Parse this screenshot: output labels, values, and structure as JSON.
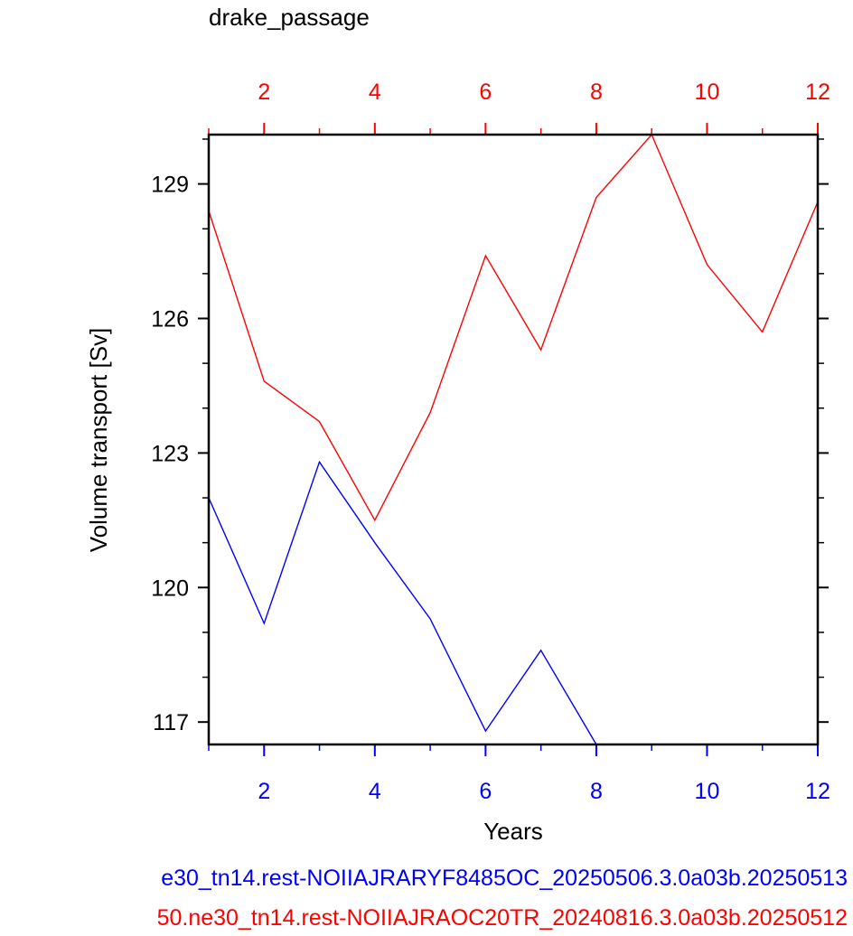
{
  "chart_data": {
    "type": "line",
    "title": "drake_passage",
    "xlabel": "Years",
    "ylabel": "Volume transport [Sv]",
    "xlim": [
      1,
      12
    ],
    "ylim": [
      116.5,
      130.1
    ],
    "bottom_axis": {
      "color": "#0000ff",
      "ticks": [
        2,
        4,
        6,
        8,
        10,
        12
      ],
      "tick_labels": [
        "2",
        "4",
        "6",
        "8",
        "10",
        "12"
      ]
    },
    "top_axis": {
      "color": "#ff0000",
      "ticks": [
        2,
        4,
        6,
        8,
        10,
        12
      ],
      "tick_labels": [
        "2",
        "4",
        "6",
        "8",
        "10",
        "12"
      ]
    },
    "y_ticks": [
      117,
      120,
      123,
      126,
      129
    ],
    "y_tick_labels": [
      "117",
      "120",
      "123",
      "126",
      "129"
    ],
    "grid": false,
    "series": [
      {
        "color": "#0000ff",
        "axis": "bottom",
        "x": [
          1,
          2,
          3,
          4,
          5,
          6,
          7,
          8
        ],
        "values": [
          122.0,
          119.2,
          122.8,
          121.0,
          119.3,
          116.8,
          118.6,
          116.5
        ]
      },
      {
        "color": "#ff0000",
        "axis": "top",
        "x": [
          1,
          2,
          3,
          4,
          5,
          6,
          7,
          8,
          9,
          10,
          11,
          12
        ],
        "values": [
          128.4,
          124.6,
          123.7,
          121.5,
          123.9,
          127.4,
          125.3,
          128.7,
          130.1,
          127.2,
          125.7,
          128.6
        ]
      }
    ],
    "legend_lines": [
      {
        "text": "e30_tn14.rest-NOIIAJRARYF8485OC_20250506.3.0a03b.20250513",
        "color": "#0000ff"
      },
      {
        "text": "50.ne30_tn14.rest-NOIIAJRAOC20TR_20240816.3.0a03b.20250512",
        "color": "#ff0000"
      }
    ]
  }
}
